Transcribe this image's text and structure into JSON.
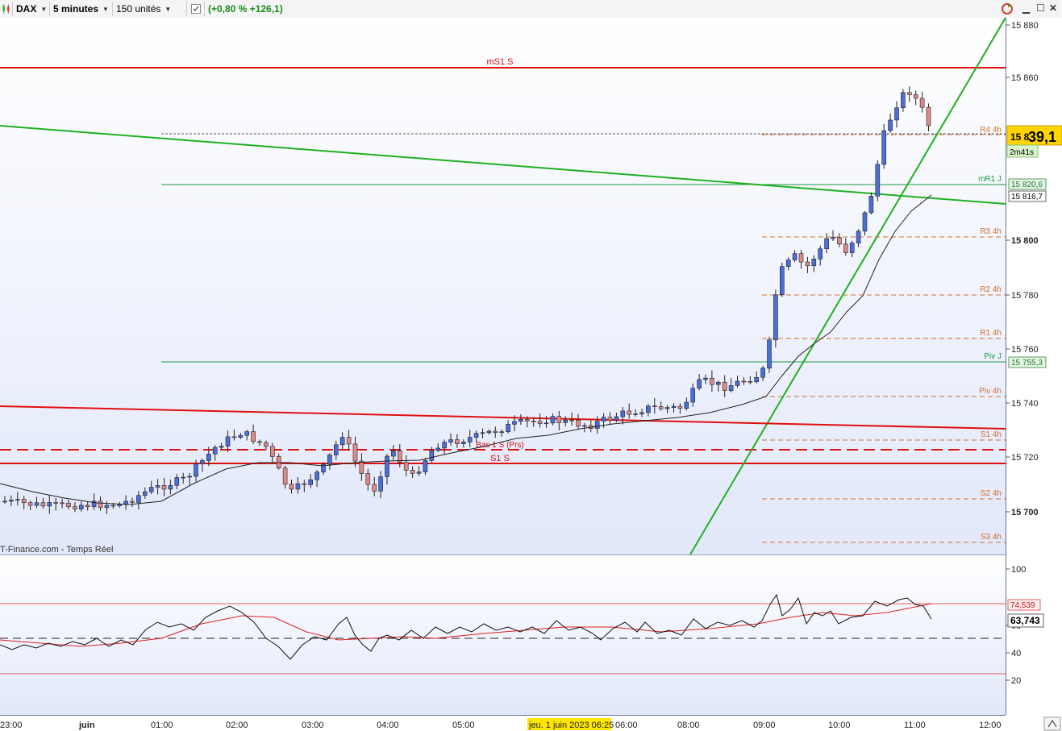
{
  "toolbar": {
    "instrument": "DAX",
    "timeframe": "5 minutes",
    "units": "150 unités",
    "change": "(+0,80 % +126,1)"
  },
  "chart": {
    "price_labels": [
      "15 880",
      "15 860",
      "15 800",
      "15 780",
      "15 760",
      "15 740",
      "15 720",
      "15 700"
    ],
    "time_labels": [
      "23:00",
      "juin",
      "01:00",
      "02:00",
      "03:00",
      "04:00",
      "05:00",
      "06:00",
      "08:00",
      "09:00",
      "10:00",
      "11:00",
      "12:00"
    ],
    "cursor_time": "jeu. 1 juin 2023 06:25",
    "current_price": {
      "prefix": "15 8",
      "big": "39,1"
    },
    "countdown": "2m41s",
    "mr1_value": "15 820,6",
    "ma_value": "15 816,7",
    "pivj_value": "15 755,3",
    "watermark": "T-Finance.com - Temps Réel",
    "levels": {
      "ms1s": "mS1 S",
      "r4": "R4 4h",
      "mr1": "mR1 J",
      "r3": "R3 4h",
      "r2": "R2 4h",
      "r1": "R1 4h",
      "pivj": "Piv J",
      "piv4": "Piv 4h",
      "s1_4h": "S1 4h",
      "bas": "Bas 1 S (Prs)",
      "s1s": "S1 S",
      "s2": "S2 4h",
      "s3": "S3 4h"
    },
    "colors": {
      "bull": "#4a6fd8",
      "bear": "#e08a8a",
      "resistance": "#e01010",
      "trend": "#20b020",
      "pivot": "#d07030"
    }
  },
  "indicator": {
    "scale_labels": [
      "100",
      "60",
      "40",
      "20"
    ],
    "upper_value": "74,539",
    "current_value": "63,743"
  }
}
